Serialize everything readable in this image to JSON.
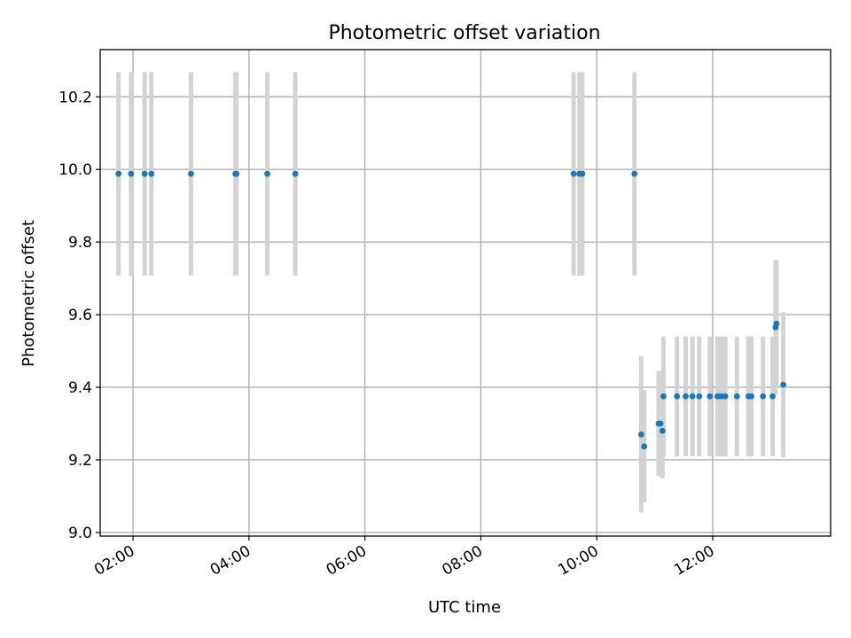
{
  "chart_data": {
    "type": "scatter",
    "title": "Photometric offset variation",
    "xlabel": "UTC time",
    "ylabel": "Photometric offset",
    "x_unit": "UTC time of day (HH:MM)",
    "xlim": [
      "01:26",
      "14:02"
    ],
    "ylim": [
      8.99,
      10.33
    ],
    "xticks": [
      "02:00",
      "04:00",
      "06:00",
      "08:00",
      "10:00",
      "12:00"
    ],
    "xtick_rotation": 30,
    "yticks": [
      9.0,
      9.2,
      9.4,
      9.6,
      9.8,
      10.0,
      10.2
    ],
    "ytick_labels": [
      "9.0",
      "9.2",
      "9.4",
      "9.6",
      "9.8",
      "10.0",
      "10.2"
    ],
    "grid": true,
    "legend": "none",
    "colors": {
      "marker": "#1f77b4",
      "errorbar": "#d3d3d3",
      "grid": "#b0b0b0"
    },
    "series": [
      {
        "points": [
          {
            "x": "01:45",
            "y": 9.988,
            "yerr": 0.28
          },
          {
            "x": "01:58",
            "y": 9.988,
            "yerr": 0.28
          },
          {
            "x": "02:12",
            "y": 9.988,
            "yerr": 0.28
          },
          {
            "x": "02:19",
            "y": 9.988,
            "yerr": 0.28
          },
          {
            "x": "03:00",
            "y": 9.988,
            "yerr": 0.28
          },
          {
            "x": "03:46",
            "y": 9.988,
            "yerr": 0.28
          },
          {
            "x": "03:47",
            "y": 9.988,
            "yerr": 0.28
          },
          {
            "x": "04:19",
            "y": 9.988,
            "yerr": 0.28
          },
          {
            "x": "04:48",
            "y": 9.988,
            "yerr": 0.28
          },
          {
            "x": "09:36",
            "y": 9.988,
            "yerr": 0.28
          },
          {
            "x": "09:42",
            "y": 9.988,
            "yerr": 0.28
          },
          {
            "x": "09:45",
            "y": 9.988,
            "yerr": 0.28
          },
          {
            "x": "10:39",
            "y": 9.988,
            "yerr": 0.28
          },
          {
            "x": "10:46",
            "y": 9.27,
            "yerr": 0.215
          },
          {
            "x": "10:49",
            "y": 9.237,
            "yerr": 0.155
          },
          {
            "x": "11:04",
            "y": 9.3,
            "yerr": 0.145
          },
          {
            "x": "11:06",
            "y": 9.3,
            "yerr": 0.145
          },
          {
            "x": "11:08",
            "y": 9.28,
            "yerr": 0.13
          },
          {
            "x": "11:09",
            "y": 9.375,
            "yerr": 0.165
          },
          {
            "x": "11:23",
            "y": 9.375,
            "yerr": 0.165
          },
          {
            "x": "11:32",
            "y": 9.375,
            "yerr": 0.165
          },
          {
            "x": "11:39",
            "y": 9.375,
            "yerr": 0.165
          },
          {
            "x": "11:46",
            "y": 9.375,
            "yerr": 0.165
          },
          {
            "x": "11:57",
            "y": 9.375,
            "yerr": 0.165
          },
          {
            "x": "12:05",
            "y": 9.375,
            "yerr": 0.165
          },
          {
            "x": "12:09",
            "y": 9.375,
            "yerr": 0.165
          },
          {
            "x": "12:13",
            "y": 9.375,
            "yerr": 0.165
          },
          {
            "x": "12:25",
            "y": 9.375,
            "yerr": 0.165
          },
          {
            "x": "12:37",
            "y": 9.375,
            "yerr": 0.165
          },
          {
            "x": "12:40",
            "y": 9.375,
            "yerr": 0.165
          },
          {
            "x": "12:52",
            "y": 9.375,
            "yerr": 0.165
          },
          {
            "x": "13:02",
            "y": 9.375,
            "yerr": 0.165
          },
          {
            "x": "13:05",
            "y": 9.565,
            "yerr": 0.185
          },
          {
            "x": "13:06",
            "y": 9.575,
            "yerr": 0.175
          },
          {
            "x": "13:13",
            "y": 9.407,
            "yerr": 0.2
          }
        ]
      }
    ]
  }
}
